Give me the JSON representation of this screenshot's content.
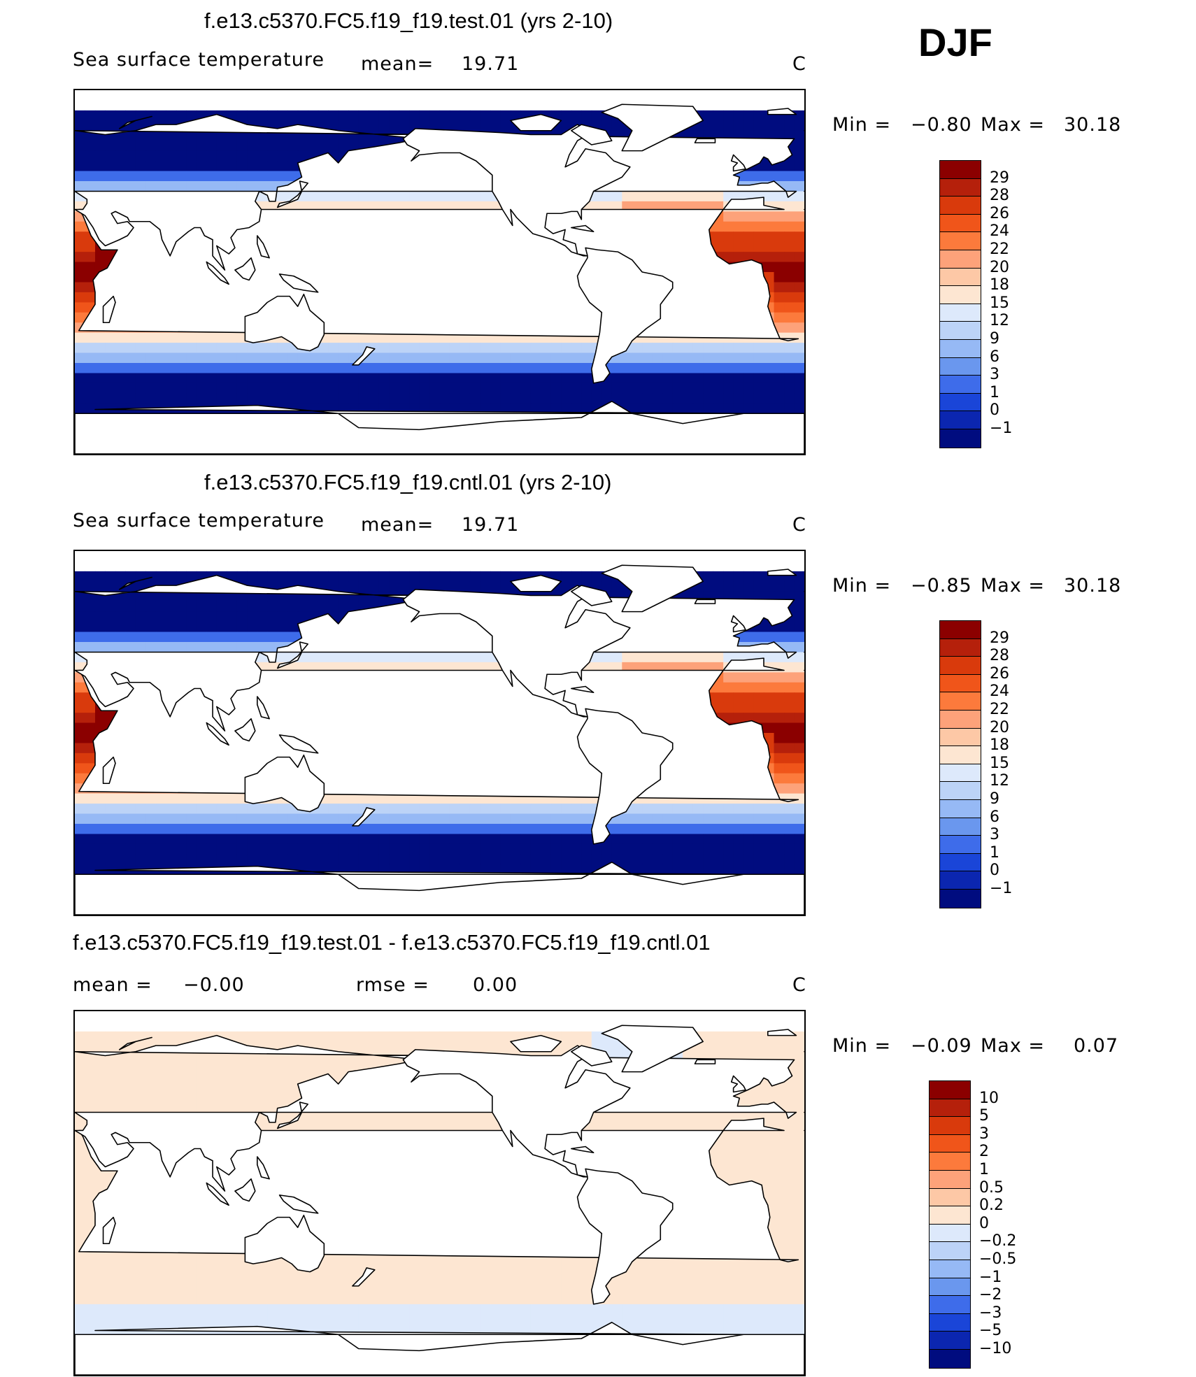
{
  "season": "DJF",
  "panels": [
    {
      "title": "f.e13.c5370.FC5.f19_f19.test.01 (yrs 2-10)",
      "variable": "Sea surface temperature",
      "stat1_label": "mean=",
      "stat1_value": "19.71",
      "stat2_label": "",
      "stat2_value": "",
      "units": "C",
      "min_label": "Min =",
      "min_value": "−0.80",
      "max_label": "Max =",
      "max_value": "30.18",
      "field": "sst",
      "colorbar": {
        "labels": [
          "29",
          "28",
          "26",
          "24",
          "22",
          "20",
          "18",
          "15",
          "12",
          "9",
          "6",
          "3",
          "1",
          "0",
          "−1"
        ],
        "colors": [
          "#8b0000",
          "#b5200b",
          "#d93a0c",
          "#f0551a",
          "#fc7a3c",
          "#fda27a",
          "#fdc8a6",
          "#fde6d2",
          "#dde9fb",
          "#bcd3f7",
          "#96b9f5",
          "#6a97ee",
          "#3e6cea",
          "#1a45d8",
          "#0b26b0",
          "#000c7f"
        ]
      }
    },
    {
      "title": "f.e13.c5370.FC5.f19_f19.cntl.01 (yrs 2-10)",
      "variable": "Sea surface temperature",
      "stat1_label": "mean=",
      "stat1_value": "19.71",
      "stat2_label": "",
      "stat2_value": "",
      "units": "C",
      "min_label": "Min =",
      "min_value": "−0.85",
      "max_label": "Max =",
      "max_value": "30.18",
      "field": "sst",
      "colorbar": {
        "labels": [
          "29",
          "28",
          "26",
          "24",
          "22",
          "20",
          "18",
          "15",
          "12",
          "9",
          "6",
          "3",
          "1",
          "0",
          "−1"
        ],
        "colors": [
          "#8b0000",
          "#b5200b",
          "#d93a0c",
          "#f0551a",
          "#fc7a3c",
          "#fda27a",
          "#fdc8a6",
          "#fde6d2",
          "#dde9fb",
          "#bcd3f7",
          "#96b9f5",
          "#6a97ee",
          "#3e6cea",
          "#1a45d8",
          "#0b26b0",
          "#000c7f"
        ]
      }
    },
    {
      "title": "f.e13.c5370.FC5.f19_f19.test.01 - f.e13.c5370.FC5.f19_f19.cntl.01",
      "variable": "",
      "stat1_label": "mean =",
      "stat1_value": "−0.00",
      "stat2_label": "rmse =",
      "stat2_value": "0.00",
      "units": "C",
      "min_label": "Min =",
      "min_value": "−0.09",
      "max_label": "Max =",
      "max_value": "0.07",
      "field": "diff",
      "colorbar": {
        "labels": [
          "10",
          "5",
          "3",
          "2",
          "1",
          "0.5",
          "0.2",
          "0",
          "−0.2",
          "−0.5",
          "−1",
          "−2",
          "−3",
          "−5",
          "−10"
        ],
        "colors": [
          "#8b0000",
          "#b5200b",
          "#d93a0c",
          "#f0551a",
          "#fc7a3c",
          "#fda27a",
          "#fdc8a6",
          "#fde6d2",
          "#dde9fb",
          "#bcd3f7",
          "#96b9f5",
          "#6a97ee",
          "#3e6cea",
          "#1a45d8",
          "#0b26b0",
          "#000c7f"
        ]
      }
    }
  ]
}
